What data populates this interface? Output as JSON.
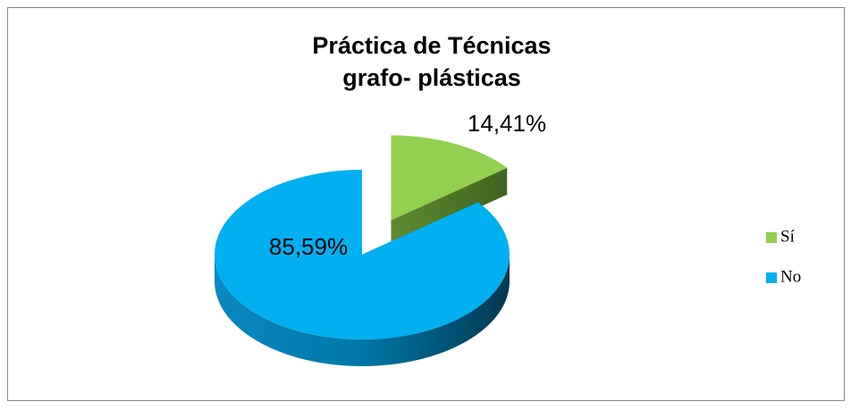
{
  "chart_data": {
    "type": "pie3d",
    "title": [
      "Práctica de Técnicas",
      "grafo- plásticas"
    ],
    "categories": [
      "Sí",
      "No"
    ],
    "values": [
      14.41,
      85.59
    ],
    "value_labels": [
      "14,41%",
      "85,59%"
    ],
    "colors": [
      "#92d050",
      "#00b0f0"
    ],
    "exploded": [
      true,
      false
    ],
    "legend": "right"
  }
}
